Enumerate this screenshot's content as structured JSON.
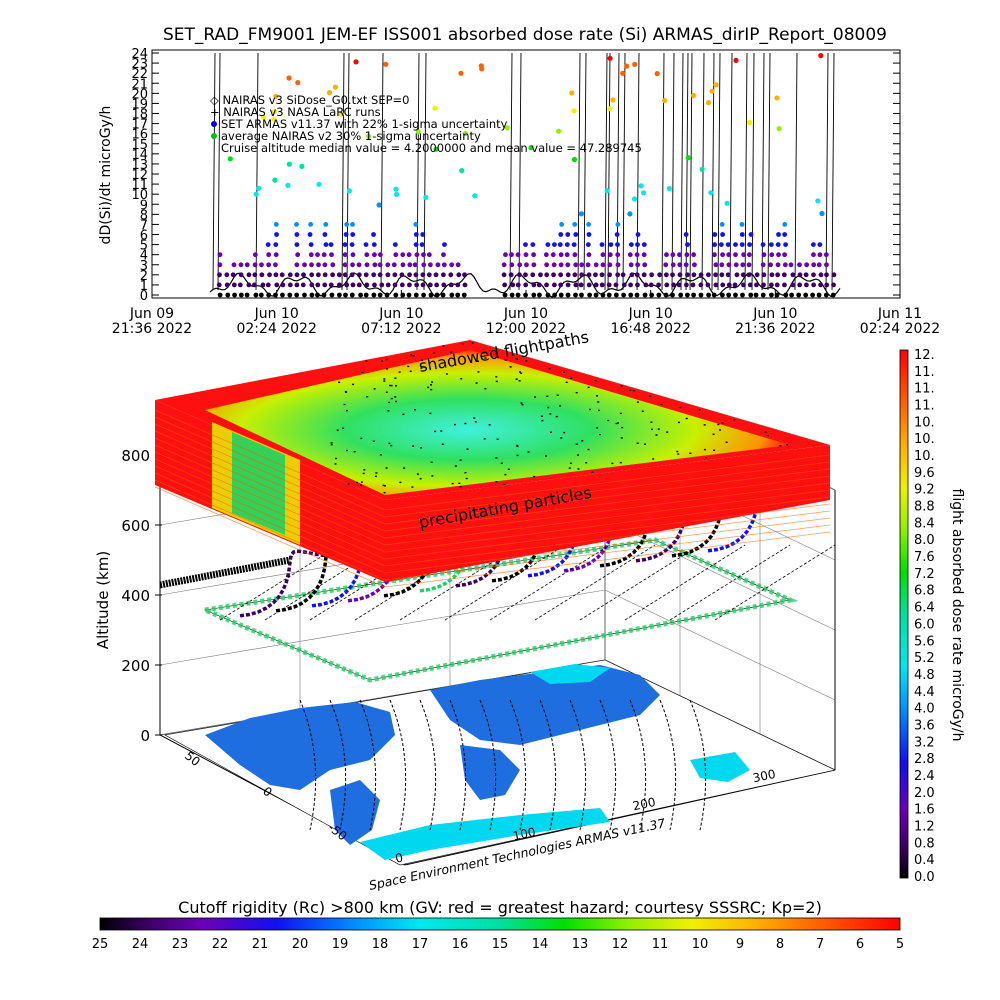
{
  "title": "SET_RAD_FM9001  JEM-EF ISS001 absorbed dose rate (Si) ARMAS_dirIP_Report_08009",
  "top_chart": {
    "ylabel": "dD(Si)/dt microGy/h",
    "yticks": [
      "0",
      "1",
      "2",
      "3",
      "4",
      "5",
      "6",
      "7",
      "8",
      "9",
      "10",
      "11",
      "12",
      "13",
      "14",
      "15",
      "16",
      "17",
      "18",
      "19",
      "20",
      "21",
      "22",
      "23",
      "24"
    ],
    "xticks": [
      {
        "date": "Jun 09",
        "time": "21:36 2022"
      },
      {
        "date": "Jun 10",
        "time": "02:24 2022"
      },
      {
        "date": "Jun 10",
        "time": "07:12 2022"
      },
      {
        "date": "Jun 10",
        "time": "12:00 2022"
      },
      {
        "date": "Jun 10",
        "time": "16:48 2022"
      },
      {
        "date": "Jun 10",
        "time": "21:36 2022"
      },
      {
        "date": "Jun 11",
        "time": "02:24 2022"
      }
    ],
    "legend": [
      "◇ NAIRAS v3 SiDose_G0.txt SEP=0",
      "+ NAIRAS v3 NASA LaRC runs",
      "SET ARMAS v11.37 with 22% 1-sigma uncertainty",
      "average NAIRAS v2 30% 1-sigma uncertainty",
      "Cruise altitude median value = 4.2000000 and mean value = 47.289745"
    ],
    "legend_colors": [
      "#000000",
      "#000000",
      "#0000ff",
      "#00c000",
      "#000000"
    ]
  },
  "main_3d": {
    "ylabel": "Altitude (km)",
    "zticks": [
      "0",
      "200",
      "400",
      "600",
      "800"
    ],
    "lat_ticks": [
      "-50",
      "0",
      "50"
    ],
    "lon_ticks": [
      "0",
      "100",
      "200",
      "300"
    ],
    "label_shadow": "shadowed flightpaths",
    "label_precip": "precipitating particles",
    "credit": "Space Environment Technologies ARMAS v11.37"
  },
  "colorbar_right": {
    "label": "flight absorbed dose rate microGy/h",
    "ticks": [
      "12.",
      "11.",
      "11.",
      "11.",
      "10.",
      "10.",
      "10.",
      "9.6",
      "9.2",
      "8.8",
      "8.4",
      "8.0",
      "7.6",
      "7.2",
      "6.8",
      "6.4",
      "6.0",
      "5.6",
      "5.2",
      "4.8",
      "4.4",
      "4.0",
      "3.6",
      "3.2",
      "2.8",
      "2.4",
      "2.0",
      "1.6",
      "1.2",
      "0.8",
      "0.4",
      "0.0"
    ]
  },
  "colorbar_bottom": {
    "title": "Cutoff rigidity (Rc) >800 km (GV: red = greatest hazard; courtesy SSSRC; Kp=2)",
    "ticks": [
      "25",
      "24",
      "23",
      "22",
      "21",
      "20",
      "19",
      "18",
      "17",
      "16",
      "15",
      "14",
      "13",
      "12",
      "11",
      "10",
      "9",
      "8",
      "7",
      "6",
      "5"
    ]
  },
  "chart_data": {
    "type": "scatter",
    "title": "SET_RAD_FM9001  JEM-EF ISS001 absorbed dose rate (Si) ARMAS_dirIP_Report_08009",
    "xlabel": "",
    "ylabel": "dD(Si)/dt microGy/h",
    "ylim": [
      0,
      24
    ],
    "x_range": [
      "Jun 09 21:36 2022",
      "Jun 11 02:24 2022"
    ],
    "grid": false,
    "legend_placement": "top-left",
    "series": [
      {
        "name": "NAIRAS v3 SiDose_G0.txt SEP=0",
        "marker": "diamond",
        "color": "#000000"
      },
      {
        "name": "NAIRAS v3 NASA LaRC runs",
        "marker": "plus",
        "color": "#000000"
      },
      {
        "name": "SET ARMAS v11.37 with 22% 1-sigma uncertainty",
        "marker": "dot",
        "color": "#0000ff"
      }
    ],
    "summary": {
      "median": 4.2,
      "mean": 47.289745
    }
  }
}
